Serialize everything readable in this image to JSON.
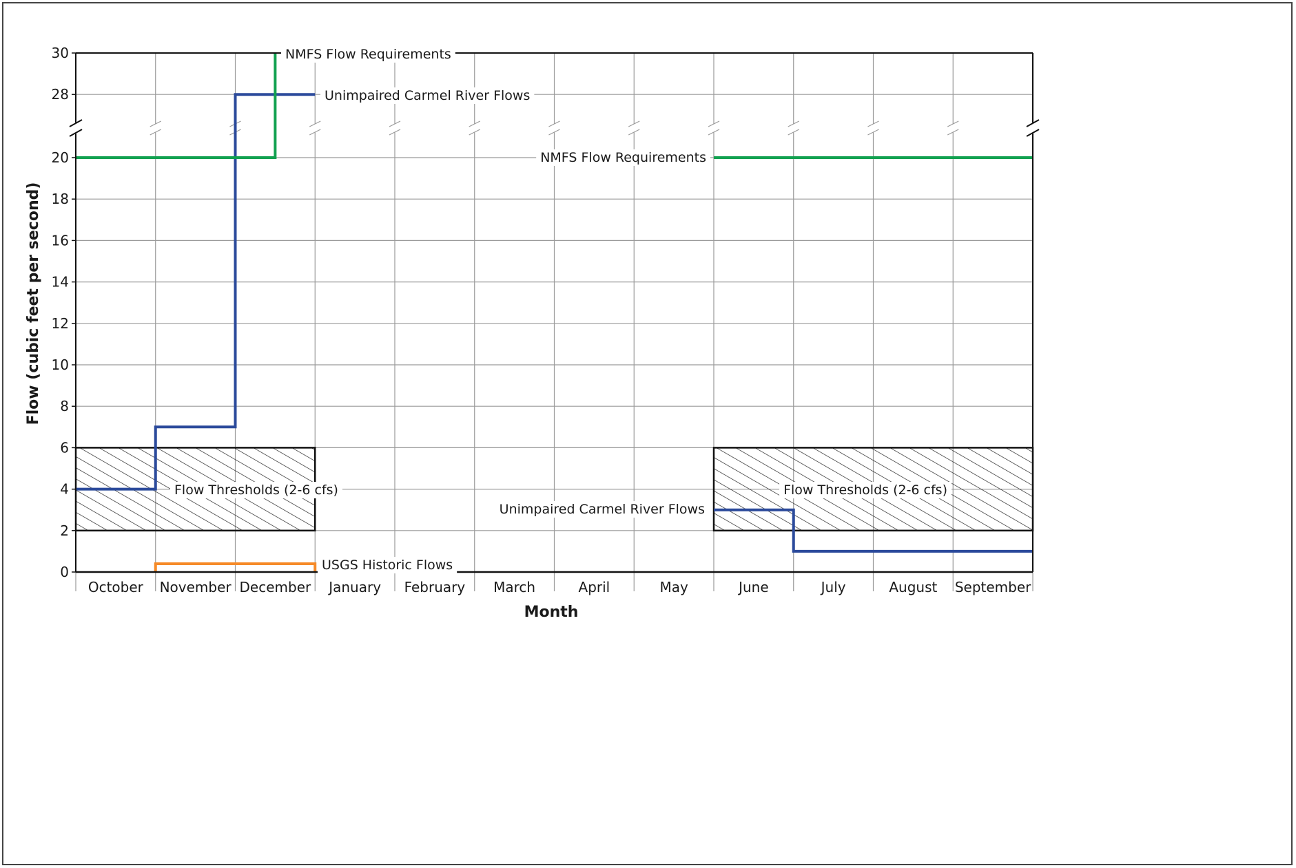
{
  "chart_data": {
    "type": "line",
    "title": "",
    "xlabel": "Month",
    "ylabel": "Flow (cubic feet per second)",
    "categories": [
      "October",
      "November",
      "December",
      "January",
      "February",
      "March",
      "April",
      "May",
      "June",
      "July",
      "August",
      "September"
    ],
    "y_ticks_lower": [
      0,
      2,
      4,
      6,
      8,
      10,
      12,
      14,
      16,
      18,
      20
    ],
    "y_ticks_upper": [
      28,
      30
    ],
    "ylim": [
      0,
      30
    ],
    "axis_break": [
      21,
      27
    ],
    "grid": true,
    "series": [
      {
        "name": "Unimpaired Carmel River Flows",
        "color": "#2b4a9b",
        "segments": [
          {
            "x": [
              "October",
              "November",
              "December",
              "January"
            ],
            "values": [
              4,
              7,
              28,
              28
            ]
          },
          {
            "x": [
              "June",
              "July",
              "August",
              "September"
            ],
            "values": [
              3,
              1,
              1,
              1
            ]
          }
        ]
      },
      {
        "name": "NMFS Flow Requirements",
        "color": "#12a150",
        "segments": [
          {
            "x": [
              "October",
              "November",
              "December"
            ],
            "start": [
              0,
              20
            ],
            "steps": [
              [
                2.5,
                20
              ],
              [
                2.5,
                30
              ]
            ]
          },
          {
            "x": [
              "June",
              "September"
            ],
            "start": [
              8,
              20
            ],
            "steps": [
              [
                12,
                20
              ]
            ]
          }
        ]
      },
      {
        "name": "USGS Historic Flows",
        "color": "#f68a28",
        "range": [
          "November",
          "December"
        ],
        "value": 0.4
      }
    ],
    "shaded_regions": [
      {
        "label": "Flow Thresholds (2-6 cfs)",
        "months": [
          "October",
          "November",
          "December"
        ],
        "range": [
          2,
          6
        ]
      },
      {
        "label": "Flow Thresholds (2-6 cfs)",
        "months": [
          "June",
          "July",
          "August",
          "September"
        ],
        "range": [
          2,
          6
        ]
      }
    ],
    "annotations": {
      "nmfs_top": "NMFS Flow Requirements",
      "unimpaired_top": "Unimpaired Carmel River Flows",
      "nmfs_mid": "NMFS Flow Requirements",
      "threshold_left": "Flow Thresholds (2-6 cfs)",
      "threshold_right": "Flow Thresholds (2-6 cfs)",
      "unimpaired_right": "Unimpaired Carmel River Flows",
      "usgs": "USGS Historic Flows"
    },
    "colors": {
      "blue": "#2b4a9b",
      "green": "#12a150",
      "orange": "#f68a28",
      "grid": "#9a9a9a"
    }
  }
}
